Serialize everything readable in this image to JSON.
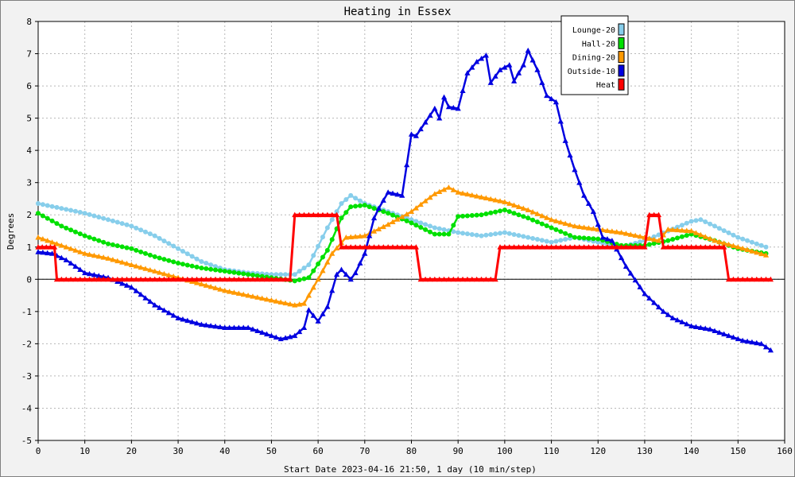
{
  "chart_data": {
    "type": "line",
    "title": "Heating in Essex",
    "xlabel": "Start Date 2023-04-16 21:50, 1 day (10 min/step)",
    "ylabel": "Degrees",
    "xlim": [
      0,
      160
    ],
    "ylim": [
      -5,
      8
    ],
    "x_ticks": [
      0,
      10,
      20,
      30,
      40,
      50,
      60,
      70,
      80,
      90,
      100,
      110,
      120,
      130,
      140,
      150,
      160
    ],
    "y_ticks": [
      -5,
      -4,
      -3,
      -2,
      -1,
      0,
      1,
      2,
      3,
      4,
      5,
      6,
      7,
      8
    ],
    "grid": true,
    "legend_position": "top-right",
    "zero_line": true,
    "series": [
      {
        "name": "Lounge-20",
        "color": "#87ceeb",
        "marker": "circle",
        "x": [
          0,
          5,
          10,
          15,
          20,
          25,
          30,
          35,
          40,
          45,
          50,
          55,
          58,
          62,
          65,
          67,
          70,
          75,
          80,
          85,
          90,
          95,
          100,
          105,
          110,
          115,
          120,
          125,
          130,
          135,
          140,
          142,
          145,
          150,
          156
        ],
        "y": [
          2.35,
          2.2,
          2.05,
          1.85,
          1.65,
          1.35,
          0.95,
          0.55,
          0.3,
          0.2,
          0.15,
          0.15,
          0.45,
          1.6,
          2.35,
          2.6,
          2.35,
          2.1,
          1.85,
          1.6,
          1.45,
          1.35,
          1.45,
          1.3,
          1.15,
          1.3,
          1.15,
          1.0,
          1.2,
          1.5,
          1.8,
          1.85,
          1.65,
          1.3,
          1.0
        ]
      },
      {
        "name": "Hall-20",
        "color": "#00e000",
        "marker": "circle",
        "x": [
          0,
          5,
          10,
          15,
          20,
          25,
          30,
          35,
          40,
          45,
          50,
          55,
          58,
          62,
          65,
          67,
          70,
          75,
          80,
          85,
          88,
          90,
          95,
          100,
          105,
          110,
          115,
          120,
          125,
          130,
          135,
          140,
          145,
          150,
          156
        ],
        "y": [
          2.05,
          1.65,
          1.35,
          1.1,
          0.95,
          0.7,
          0.5,
          0.35,
          0.25,
          0.15,
          0.05,
          -0.05,
          0.05,
          0.9,
          1.9,
          2.25,
          2.3,
          2.05,
          1.75,
          1.4,
          1.4,
          1.95,
          2.0,
          2.15,
          1.9,
          1.6,
          1.3,
          1.25,
          1.05,
          1.05,
          1.2,
          1.4,
          1.2,
          0.95,
          0.8
        ]
      },
      {
        "name": "Dining-20",
        "color": "#ff9900",
        "marker": "triangle",
        "x": [
          0,
          5,
          10,
          15,
          20,
          25,
          30,
          35,
          40,
          45,
          50,
          55,
          57,
          60,
          63,
          66,
          70,
          75,
          80,
          85,
          88,
          90,
          95,
          100,
          105,
          110,
          115,
          120,
          125,
          130,
          133,
          135,
          140,
          145,
          150,
          156
        ],
        "y": [
          1.3,
          1.05,
          0.8,
          0.65,
          0.45,
          0.25,
          0.05,
          -0.15,
          -0.35,
          -0.5,
          -0.65,
          -0.8,
          -0.75,
          0.0,
          0.8,
          1.3,
          1.35,
          1.7,
          2.1,
          2.65,
          2.85,
          2.7,
          2.55,
          2.4,
          2.15,
          1.85,
          1.65,
          1.55,
          1.45,
          1.3,
          1.2,
          1.55,
          1.5,
          1.2,
          1.0,
          0.75
        ]
      },
      {
        "name": "Outside-10",
        "color": "#0000e0",
        "marker": "triangle",
        "x": [
          0,
          3,
          6,
          10,
          15,
          20,
          25,
          30,
          35,
          40,
          45,
          50,
          52,
          55,
          57,
          58,
          60,
          62,
          64,
          65,
          67,
          68,
          70,
          72,
          73,
          75,
          78,
          80,
          81,
          85,
          86,
          87,
          88,
          90,
          92,
          94,
          96,
          97,
          99,
          101,
          102,
          104,
          105,
          107,
          109,
          111,
          113,
          115,
          117,
          119,
          121,
          123,
          126,
          130,
          134,
          136,
          140,
          144,
          148,
          151,
          155,
          157
        ],
        "y": [
          0.85,
          0.8,
          0.6,
          0.2,
          0.05,
          -0.25,
          -0.8,
          -1.2,
          -1.4,
          -1.5,
          -1.5,
          -1.75,
          -1.85,
          -1.75,
          -1.5,
          -0.95,
          -1.3,
          -0.85,
          0.15,
          0.3,
          0.0,
          0.2,
          0.8,
          1.9,
          2.2,
          2.7,
          2.6,
          4.5,
          4.45,
          5.3,
          5.0,
          5.65,
          5.35,
          5.3,
          6.4,
          6.75,
          6.95,
          6.1,
          6.5,
          6.65,
          6.15,
          6.65,
          7.1,
          6.5,
          5.7,
          5.5,
          4.3,
          3.4,
          2.6,
          2.1,
          1.3,
          1.2,
          0.4,
          -0.45,
          -1.0,
          -1.2,
          -1.45,
          -1.55,
          -1.75,
          -1.9,
          -2.0,
          -2.2
        ]
      },
      {
        "name": "Heat",
        "color": "#ff0000",
        "marker": "triangle",
        "step": true,
        "x": [
          0,
          3.5,
          4,
          54,
          55,
          64,
          65,
          81,
          82,
          98,
          99,
          130,
          131,
          133,
          134,
          147,
          148,
          157
        ],
        "y": [
          1,
          1,
          0,
          0,
          2,
          2,
          1,
          1,
          0,
          0,
          1,
          1,
          2,
          2,
          1,
          1,
          0,
          0
        ]
      }
    ]
  }
}
